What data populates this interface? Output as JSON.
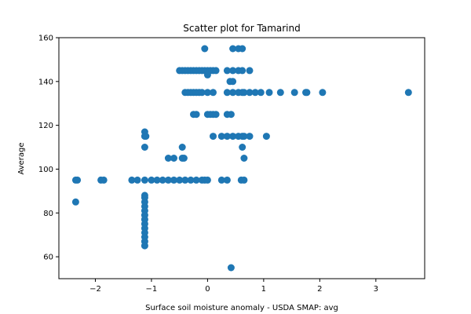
{
  "chart_data": {
    "type": "scatter",
    "title": "Scatter plot for Tamarind",
    "xlabel": "Surface soil moisture anomaly  - USDA SMAP: avg",
    "ylabel": "Average",
    "xlim": [
      -2.65,
      3.87
    ],
    "ylim": [
      50,
      160
    ],
    "xticks": [
      -2,
      -1,
      0,
      1,
      2,
      3
    ],
    "yticks": [
      60,
      80,
      100,
      120,
      140,
      160
    ],
    "grid": false,
    "marker_color": "#1f77b4",
    "points": [
      [
        -0.05,
        155
      ],
      [
        0.45,
        155
      ],
      [
        0.55,
        155
      ],
      [
        0.62,
        155
      ],
      [
        -0.5,
        145
      ],
      [
        -0.45,
        145
      ],
      [
        -0.4,
        145
      ],
      [
        -0.35,
        145
      ],
      [
        -0.3,
        145
      ],
      [
        -0.25,
        145
      ],
      [
        -0.2,
        145
      ],
      [
        -0.15,
        145
      ],
      [
        -0.1,
        145
      ],
      [
        -0.05,
        145
      ],
      [
        0.0,
        145
      ],
      [
        0.05,
        145
      ],
      [
        0.1,
        145
      ],
      [
        0.15,
        145
      ],
      [
        0.35,
        145
      ],
      [
        0.45,
        145
      ],
      [
        0.55,
        145
      ],
      [
        0.62,
        145
      ],
      [
        0.75,
        145
      ],
      [
        0.0,
        143
      ],
      [
        0.4,
        140
      ],
      [
        0.45,
        140
      ],
      [
        -0.4,
        135
      ],
      [
        -0.35,
        135
      ],
      [
        -0.3,
        135
      ],
      [
        -0.25,
        135
      ],
      [
        -0.2,
        135
      ],
      [
        -0.15,
        135
      ],
      [
        -0.1,
        135
      ],
      [
        0.0,
        135
      ],
      [
        0.1,
        135
      ],
      [
        0.35,
        135
      ],
      [
        0.45,
        135
      ],
      [
        0.55,
        135
      ],
      [
        0.62,
        135
      ],
      [
        0.65,
        135
      ],
      [
        0.75,
        135
      ],
      [
        0.85,
        135
      ],
      [
        0.95,
        135
      ],
      [
        1.1,
        135
      ],
      [
        1.3,
        135
      ],
      [
        1.55,
        135
      ],
      [
        1.75,
        135
      ],
      [
        1.77,
        135
      ],
      [
        2.05,
        135
      ],
      [
        3.58,
        135
      ],
      [
        -0.25,
        125
      ],
      [
        -0.2,
        125
      ],
      [
        0.0,
        125
      ],
      [
        0.05,
        125
      ],
      [
        0.1,
        125
      ],
      [
        0.15,
        125
      ],
      [
        0.35,
        125
      ],
      [
        0.42,
        125
      ],
      [
        -1.12,
        117
      ],
      [
        -1.12,
        115
      ],
      [
        -1.1,
        115
      ],
      [
        0.1,
        115
      ],
      [
        0.25,
        115
      ],
      [
        0.35,
        115
      ],
      [
        0.45,
        115
      ],
      [
        0.55,
        115
      ],
      [
        0.62,
        115
      ],
      [
        0.65,
        115
      ],
      [
        0.75,
        115
      ],
      [
        1.05,
        115
      ],
      [
        -1.12,
        110
      ],
      [
        -0.45,
        110
      ],
      [
        0.62,
        110
      ],
      [
        -0.7,
        105
      ],
      [
        -0.6,
        105
      ],
      [
        -0.45,
        105
      ],
      [
        -0.42,
        105
      ],
      [
        0.65,
        105
      ],
      [
        -2.35,
        95
      ],
      [
        -2.32,
        95
      ],
      [
        -1.9,
        95
      ],
      [
        -1.85,
        95
      ],
      [
        -1.35,
        95
      ],
      [
        -1.25,
        95
      ],
      [
        -1.12,
        95
      ],
      [
        -1.0,
        95
      ],
      [
        -0.9,
        95
      ],
      [
        -0.8,
        95
      ],
      [
        -0.7,
        95
      ],
      [
        -0.6,
        95
      ],
      [
        -0.5,
        95
      ],
      [
        -0.4,
        95
      ],
      [
        -0.3,
        95
      ],
      [
        -0.2,
        95
      ],
      [
        -0.1,
        95
      ],
      [
        -0.05,
        95
      ],
      [
        0.0,
        95
      ],
      [
        0.25,
        95
      ],
      [
        0.35,
        95
      ],
      [
        0.6,
        95
      ],
      [
        0.65,
        95
      ],
      [
        -1.12,
        88
      ],
      [
        -1.12,
        87
      ],
      [
        -2.35,
        85
      ],
      [
        -1.12,
        85
      ],
      [
        -1.12,
        83
      ],
      [
        -1.12,
        81
      ],
      [
        -1.12,
        79
      ],
      [
        -1.12,
        77
      ],
      [
        -1.12,
        75
      ],
      [
        -1.12,
        73
      ],
      [
        -1.12,
        71
      ],
      [
        -1.12,
        69
      ],
      [
        -1.12,
        67
      ],
      [
        -1.12,
        65
      ],
      [
        0.42,
        55
      ]
    ]
  }
}
